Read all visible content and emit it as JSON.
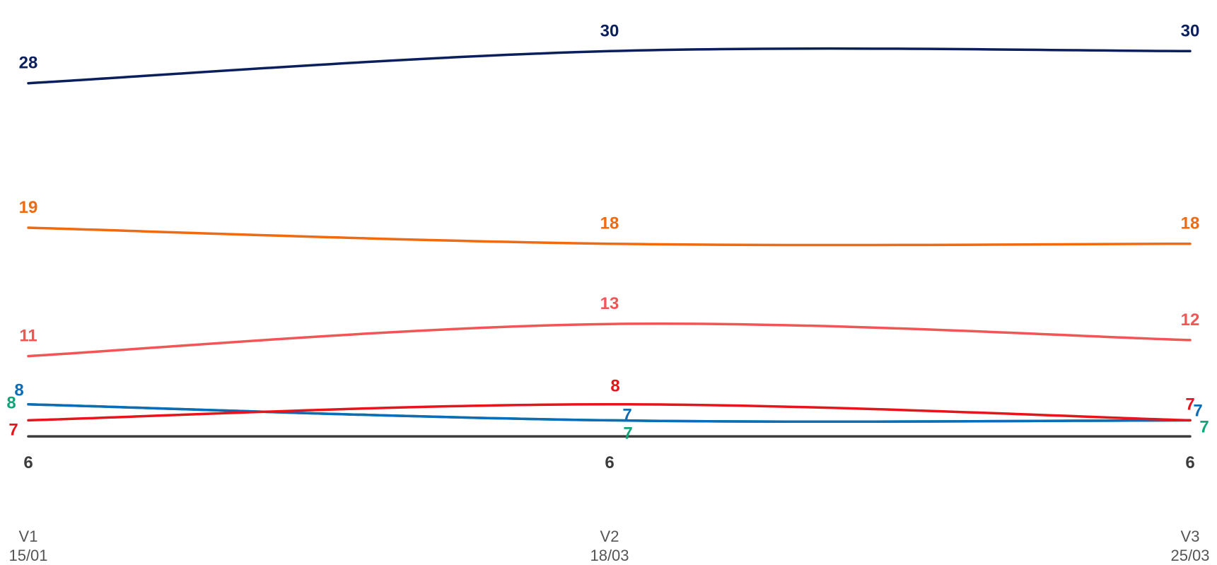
{
  "chart_data": {
    "type": "line",
    "categories": [
      {
        "line1": "V1",
        "line2": "15/01"
      },
      {
        "line1": "V2",
        "line2": "18/03"
      },
      {
        "line1": "V3",
        "line2": "25/03"
      }
    ],
    "ylim": [
      4.5,
      31.5
    ],
    "grid": false,
    "legend": "none",
    "series": [
      {
        "values": [
          28,
          30,
          30
        ],
        "labels": [
          "28",
          "30",
          "30"
        ],
        "color": "#0a1f5c"
      },
      {
        "values": [
          19,
          18,
          18
        ],
        "labels": [
          "19",
          "18",
          "18"
        ],
        "color": "#f06a0f"
      },
      {
        "values": [
          11,
          13,
          12
        ],
        "labels": [
          "11",
          "13",
          "12"
        ],
        "color": "#f25555"
      },
      {
        "values": [
          7,
          8,
          7
        ],
        "labels": [
          "7",
          "8",
          "7"
        ],
        "color": "#e8131b"
      },
      {
        "values": [
          8,
          7,
          7
        ],
        "labels": [
          "8",
          "7",
          "7"
        ],
        "color": "#0b6cb8"
      },
      {
        "values": [
          8,
          7,
          7
        ],
        "labels": [
          "8",
          "7",
          "7"
        ],
        "color": "#11a67a"
      },
      {
        "values": [
          6,
          6,
          6
        ],
        "labels": [
          "6",
          "6",
          "6"
        ],
        "color": "#3c3c3c"
      }
    ]
  }
}
